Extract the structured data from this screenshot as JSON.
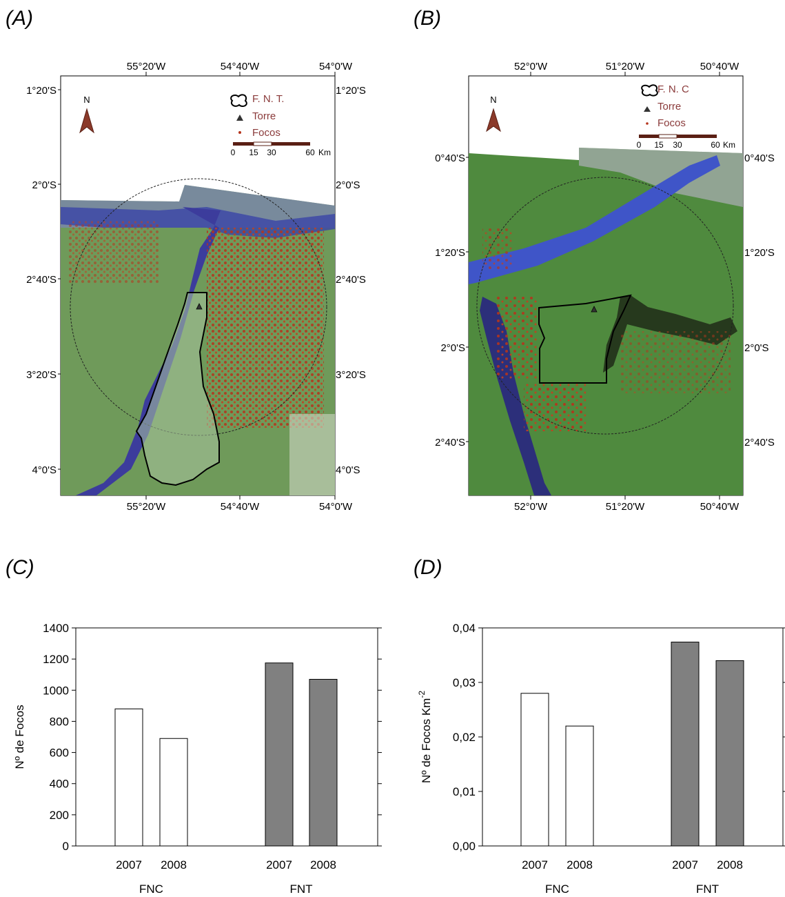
{
  "panels": {
    "a": "(A)",
    "b": "(B)",
    "c": "(C)",
    "d": "(D)"
  },
  "colors": {
    "fnc_bar": "#ffffff",
    "fnt_bar": "#808080",
    "focos": "#b5341c",
    "water": "#3c3c9c",
    "vegetation": "#6f9a5a",
    "boundary": "#000000"
  },
  "map_a": {
    "top_ticks": [
      "55°20'W",
      "54°40'W",
      "54°0'W"
    ],
    "bottom_ticks": [
      "55°20'W",
      "54°40'W",
      "54°0'W"
    ],
    "left_ticks": [
      "1°20'S",
      "2°0'S",
      "2°40'S",
      "3°20'S",
      "4°0'S"
    ],
    "right_ticks": [
      "1°20'S",
      "2°0'S",
      "2°40'S",
      "3°20'S",
      "4°0'S"
    ],
    "north": "N",
    "legend": {
      "area": "F. N. T.",
      "tower": "Torre",
      "fires": "Focos"
    },
    "scale": [
      "0",
      "15",
      "30",
      "60",
      "Km"
    ]
  },
  "map_b": {
    "top_ticks": [
      "52°0'W",
      "51°20'W",
      "50°40'W"
    ],
    "bottom_ticks": [
      "52°0'W",
      "51°20'W",
      "50°40'W"
    ],
    "left_ticks": [
      "0°40'S",
      "1°20'S",
      "2°0'S",
      "2°40'S"
    ],
    "right_ticks": [
      "0°40'S",
      "1°20'S",
      "2°0'S",
      "2°40'S"
    ],
    "north": "N",
    "legend": {
      "area": "F. N. C",
      "tower": "Torre",
      "fires": "Focos"
    },
    "scale": [
      "0",
      "15",
      "30",
      "60",
      "Km"
    ]
  },
  "chart_data": [
    {
      "type": "bar",
      "panel": "C",
      "groups": [
        "FNC",
        "FNT"
      ],
      "categories": [
        "2007",
        "2008"
      ],
      "series": [
        {
          "group": "FNC",
          "values": [
            880,
            690
          ]
        },
        {
          "group": "FNT",
          "values": [
            1175,
            1070
          ]
        }
      ],
      "ylabel": "Nº de Focos",
      "ylabel_sup": "",
      "ylim": [
        0,
        1400
      ],
      "yticks": [
        "0",
        "200",
        "400",
        "600",
        "800",
        "1000",
        "1200",
        "1400"
      ],
      "ytick_values": [
        0,
        200,
        400,
        600,
        800,
        1000,
        1200,
        1400
      ]
    },
    {
      "type": "bar",
      "panel": "D",
      "groups": [
        "FNC",
        "FNT"
      ],
      "categories": [
        "2007",
        "2008"
      ],
      "series": [
        {
          "group": "FNC",
          "values": [
            0.028,
            0.022
          ]
        },
        {
          "group": "FNT",
          "values": [
            0.0374,
            0.034
          ]
        }
      ],
      "ylabel": "Nº de Focos Km",
      "ylabel_sup": "-2",
      "ylim": [
        0,
        0.04
      ],
      "yticks": [
        "0,00",
        "0,01",
        "0,02",
        "0,03",
        "0,04"
      ],
      "ytick_values": [
        0,
        0.01,
        0.02,
        0.03,
        0.04
      ]
    }
  ]
}
